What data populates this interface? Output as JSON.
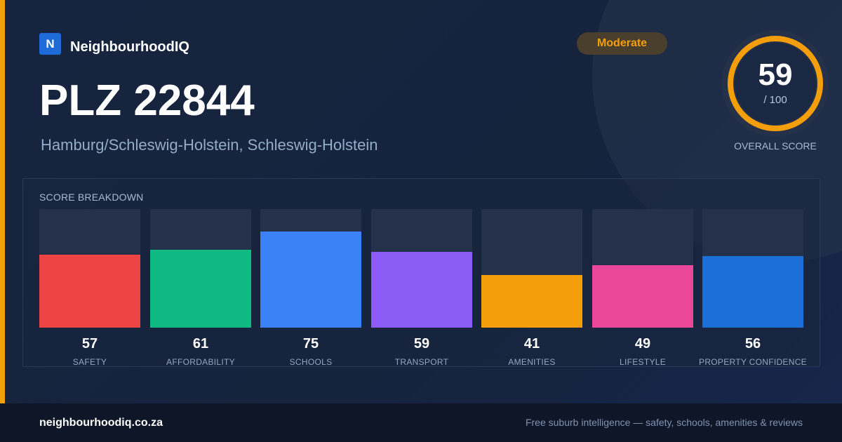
{
  "brand": {
    "logo_letter": "N",
    "name": "NeighbourhoodIQ"
  },
  "badge": {
    "label": "Moderate",
    "color": "#f59e0b"
  },
  "location": {
    "title": "PLZ 22844",
    "subtitle": "Hamburg/Schleswig-Holstein, Schleswig-Holstein"
  },
  "overall": {
    "score": "59",
    "max": "/ 100",
    "caption": "OVERALL SCORE",
    "fraction": 0.59,
    "ring_color": "#f59e0b"
  },
  "breakdown": {
    "title": "SCORE BREAKDOWN",
    "items": [
      {
        "label": "SAFETY",
        "value": "57",
        "color": "#ef4444"
      },
      {
        "label": "AFFORDABILITY",
        "value": "61",
        "color": "#10b981"
      },
      {
        "label": "SCHOOLS",
        "value": "75",
        "color": "#3b82f6"
      },
      {
        "label": "TRANSPORT",
        "value": "59",
        "color": "#8b5cf6"
      },
      {
        "label": "AMENITIES",
        "value": "41",
        "color": "#f59e0b"
      },
      {
        "label": "LIFESTYLE",
        "value": "49",
        "color": "#ec4899"
      },
      {
        "label": "PROPERTY CONFIDENCE",
        "value": "56",
        "color": "#1d6fd8"
      }
    ]
  },
  "footer": {
    "domain": "neighbourhoodiq.co.za",
    "tagline": "Free suburb intelligence — safety, schools, amenities & reviews"
  }
}
